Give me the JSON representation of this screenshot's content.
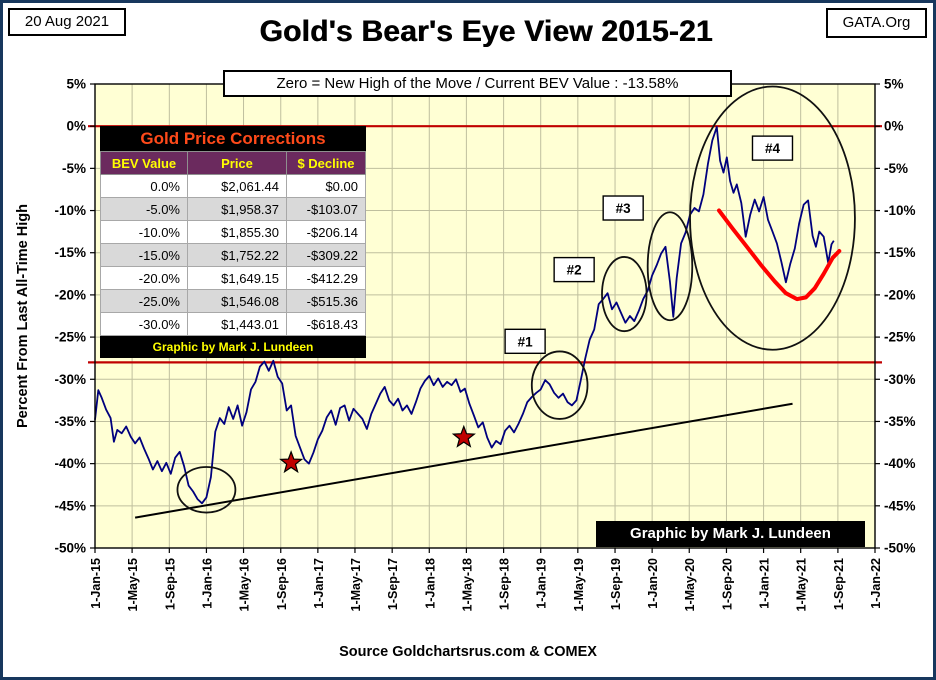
{
  "header": {
    "date": "20 Aug 2021",
    "org": "GATA.Org"
  },
  "table": {
    "title": "Gold Price Corrections",
    "columns": [
      "BEV Value",
      "Price",
      "$ Decline"
    ],
    "rows": [
      [
        "0.0%",
        "$2,061.44",
        "$0.00"
      ],
      [
        "-5.0%",
        "$1,958.37",
        "-$103.07"
      ],
      [
        "-10.0%",
        "$1,855.30",
        "-$206.14"
      ],
      [
        "-15.0%",
        "$1,752.22",
        "-$309.22"
      ],
      [
        "-20.0%",
        "$1,649.15",
        "-$412.29"
      ],
      [
        "-25.0%",
        "$1,546.08",
        "-$515.36"
      ],
      [
        "-30.0%",
        "$1,443.01",
        "-$618.43"
      ]
    ],
    "footer": "Graphic by Mark J. Lundeen",
    "colors": {
      "title_text": "#ff4a1a",
      "header_bg": "#6b2a5e",
      "header_text": "#ffff00",
      "row_alt_bg": "#d9d9d9",
      "footer_text": "#ffff00"
    }
  },
  "footer": {
    "credit": "Graphic by Mark J. Lundeen"
  },
  "chart_data": {
    "type": "line",
    "title": "Gold's Bear's Eye View 2015-21",
    "subtitle": "Zero = New High of the Move / Current  BEV Value : -13.58%",
    "ylabel": "Percent  From Last All-Time High",
    "xlabel": "Source Goldchartsrus.com & COMEX",
    "current_bev_pct": -13.58,
    "x_range": [
      2015,
      2022
    ],
    "y_range": [
      -50,
      5
    ],
    "grid": true,
    "x_ticks": [
      {
        "t": 2015.0,
        "label": "1-Jan-15"
      },
      {
        "t": 2015.333,
        "label": "1-May-15"
      },
      {
        "t": 2015.667,
        "label": "1-Sep-15"
      },
      {
        "t": 2016.0,
        "label": "1-Jan-16"
      },
      {
        "t": 2016.333,
        "label": "1-May-16"
      },
      {
        "t": 2016.667,
        "label": "1-Sep-16"
      },
      {
        "t": 2017.0,
        "label": "1-Jan-17"
      },
      {
        "t": 2017.333,
        "label": "1-May-17"
      },
      {
        "t": 2017.667,
        "label": "1-Sep-17"
      },
      {
        "t": 2018.0,
        "label": "1-Jan-18"
      },
      {
        "t": 2018.333,
        "label": "1-May-18"
      },
      {
        "t": 2018.667,
        "label": "1-Sep-18"
      },
      {
        "t": 2019.0,
        "label": "1-Jan-19"
      },
      {
        "t": 2019.333,
        "label": "1-May-19"
      },
      {
        "t": 2019.667,
        "label": "1-Sep-19"
      },
      {
        "t": 2020.0,
        "label": "1-Jan-20"
      },
      {
        "t": 2020.333,
        "label": "1-May-20"
      },
      {
        "t": 2020.667,
        "label": "1-Sep-20"
      },
      {
        "t": 2021.0,
        "label": "1-Jan-21"
      },
      {
        "t": 2021.333,
        "label": "1-May-21"
      },
      {
        "t": 2021.667,
        "label": "1-Sep-21"
      },
      {
        "t": 2022.0,
        "label": "1-Jan-22"
      }
    ],
    "y_ticks": [
      {
        "v": 5,
        "label": "5%"
      },
      {
        "v": 0,
        "label": "0%"
      },
      {
        "v": -5,
        "label": "-5%"
      },
      {
        "v": -10,
        "label": "-10%"
      },
      {
        "v": -15,
        "label": "-15%"
      },
      {
        "v": -20,
        "label": "-20%"
      },
      {
        "v": -25,
        "label": "-25%"
      },
      {
        "v": -30,
        "label": "-30%"
      },
      {
        "v": -35,
        "label": "-35%"
      },
      {
        "v": -40,
        "label": "-40%"
      },
      {
        "v": -45,
        "label": "-45%"
      },
      {
        "v": -50,
        "label": "-50%"
      }
    ],
    "colors": {
      "series": "#00007e",
      "plot_bg": "#ffffd4",
      "grid": "#bfbf9e",
      "red_line": "#c00000",
      "red_curve": "#ff0000",
      "star": "#c00000",
      "annotation": "#111111"
    },
    "red_hlines": [
      0,
      -28
    ],
    "trend_line": {
      "x1": 2015.36,
      "y1": -46.4,
      "x2": 2021.26,
      "y2": -32.9
    },
    "series": [
      {
        "name": "Gold BEV (% from all-time high)",
        "color": "#00007e",
        "points": [
          [
            2015.0,
            -34.8
          ],
          [
            2015.03,
            -31.3
          ],
          [
            2015.06,
            -32.2
          ],
          [
            2015.1,
            -33.6
          ],
          [
            2015.14,
            -34.6
          ],
          [
            2015.17,
            -37.4
          ],
          [
            2015.2,
            -36.0
          ],
          [
            2015.24,
            -36.4
          ],
          [
            2015.28,
            -35.6
          ],
          [
            2015.32,
            -36.8
          ],
          [
            2015.36,
            -37.6
          ],
          [
            2015.4,
            -36.9
          ],
          [
            2015.44,
            -38.2
          ],
          [
            2015.48,
            -39.4
          ],
          [
            2015.52,
            -40.7
          ],
          [
            2015.56,
            -39.7
          ],
          [
            2015.6,
            -40.9
          ],
          [
            2015.64,
            -39.9
          ],
          [
            2015.68,
            -41.2
          ],
          [
            2015.72,
            -39.3
          ],
          [
            2015.76,
            -38.6
          ],
          [
            2015.8,
            -40.3
          ],
          [
            2015.84,
            -42.6
          ],
          [
            2015.88,
            -43.3
          ],
          [
            2015.92,
            -44.2
          ],
          [
            2015.96,
            -44.7
          ],
          [
            2016.0,
            -44.0
          ],
          [
            2016.04,
            -41.6
          ],
          [
            2016.08,
            -36.2
          ],
          [
            2016.12,
            -34.6
          ],
          [
            2016.16,
            -35.3
          ],
          [
            2016.2,
            -33.3
          ],
          [
            2016.24,
            -34.7
          ],
          [
            2016.28,
            -33.1
          ],
          [
            2016.32,
            -35.5
          ],
          [
            2016.36,
            -33.9
          ],
          [
            2016.4,
            -31.2
          ],
          [
            2016.44,
            -30.3
          ],
          [
            2016.48,
            -28.5
          ],
          [
            2016.52,
            -27.9
          ],
          [
            2016.56,
            -29.0
          ],
          [
            2016.6,
            -27.8
          ],
          [
            2016.64,
            -29.7
          ],
          [
            2016.68,
            -30.5
          ],
          [
            2016.72,
            -33.7
          ],
          [
            2016.76,
            -33.1
          ],
          [
            2016.8,
            -36.7
          ],
          [
            2016.84,
            -38.1
          ],
          [
            2016.88,
            -39.5
          ],
          [
            2016.92,
            -40.0
          ],
          [
            2016.96,
            -38.7
          ],
          [
            2017.0,
            -37.1
          ],
          [
            2017.04,
            -36.1
          ],
          [
            2017.08,
            -34.5
          ],
          [
            2017.12,
            -33.7
          ],
          [
            2017.16,
            -35.4
          ],
          [
            2017.2,
            -33.4
          ],
          [
            2017.24,
            -33.1
          ],
          [
            2017.28,
            -34.9
          ],
          [
            2017.32,
            -33.5
          ],
          [
            2017.36,
            -34.1
          ],
          [
            2017.4,
            -34.7
          ],
          [
            2017.44,
            -35.9
          ],
          [
            2017.48,
            -34.1
          ],
          [
            2017.52,
            -32.9
          ],
          [
            2017.56,
            -31.7
          ],
          [
            2017.6,
            -30.9
          ],
          [
            2017.64,
            -32.5
          ],
          [
            2017.68,
            -33.1
          ],
          [
            2017.72,
            -32.3
          ],
          [
            2017.76,
            -33.7
          ],
          [
            2017.8,
            -33.1
          ],
          [
            2017.84,
            -34.1
          ],
          [
            2017.88,
            -32.7
          ],
          [
            2017.92,
            -31.1
          ],
          [
            2017.96,
            -30.2
          ],
          [
            2018.0,
            -29.6
          ],
          [
            2018.04,
            -30.7
          ],
          [
            2018.08,
            -29.9
          ],
          [
            2018.12,
            -30.9
          ],
          [
            2018.16,
            -30.3
          ],
          [
            2018.2,
            -30.7
          ],
          [
            2018.24,
            -30.0
          ],
          [
            2018.28,
            -31.5
          ],
          [
            2018.32,
            -31.1
          ],
          [
            2018.36,
            -32.9
          ],
          [
            2018.4,
            -34.3
          ],
          [
            2018.44,
            -35.7
          ],
          [
            2018.48,
            -35.1
          ],
          [
            2018.52,
            -36.9
          ],
          [
            2018.56,
            -38.1
          ],
          [
            2018.6,
            -37.3
          ],
          [
            2018.64,
            -37.7
          ],
          [
            2018.68,
            -36.1
          ],
          [
            2018.72,
            -35.5
          ],
          [
            2018.76,
            -36.3
          ],
          [
            2018.8,
            -35.3
          ],
          [
            2018.84,
            -34.1
          ],
          [
            2018.88,
            -32.7
          ],
          [
            2018.92,
            -32.1
          ],
          [
            2018.96,
            -31.6
          ],
          [
            2019.0,
            -31.2
          ],
          [
            2019.04,
            -30.1
          ],
          [
            2019.08,
            -30.6
          ],
          [
            2019.12,
            -31.6
          ],
          [
            2019.16,
            -32.2
          ],
          [
            2019.2,
            -31.7
          ],
          [
            2019.24,
            -32.7
          ],
          [
            2019.28,
            -33.1
          ],
          [
            2019.32,
            -32.5
          ],
          [
            2019.36,
            -30.1
          ],
          [
            2019.4,
            -27.5
          ],
          [
            2019.44,
            -25.3
          ],
          [
            2019.48,
            -24.1
          ],
          [
            2019.52,
            -21.1
          ],
          [
            2019.56,
            -20.5
          ],
          [
            2019.6,
            -19.8
          ],
          [
            2019.64,
            -21.7
          ],
          [
            2019.68,
            -20.9
          ],
          [
            2019.72,
            -22.1
          ],
          [
            2019.76,
            -23.3
          ],
          [
            2019.8,
            -22.5
          ],
          [
            2019.84,
            -23.1
          ],
          [
            2019.88,
            -21.9
          ],
          [
            2019.92,
            -20.5
          ],
          [
            2019.96,
            -19.5
          ],
          [
            2020.0,
            -17.7
          ],
          [
            2020.04,
            -16.5
          ],
          [
            2020.08,
            -15.1
          ],
          [
            2020.12,
            -14.3
          ],
          [
            2020.16,
            -18.5
          ],
          [
            2020.19,
            -22.6
          ],
          [
            2020.22,
            -18.0
          ],
          [
            2020.26,
            -13.9
          ],
          [
            2020.3,
            -12.6
          ],
          [
            2020.34,
            -10.5
          ],
          [
            2020.38,
            -9.7
          ],
          [
            2020.42,
            -10.1
          ],
          [
            2020.46,
            -8.1
          ],
          [
            2020.5,
            -4.5
          ],
          [
            2020.54,
            -1.7
          ],
          [
            2020.58,
            -0.1
          ],
          [
            2020.61,
            -4.1
          ],
          [
            2020.64,
            -5.5
          ],
          [
            2020.67,
            -3.7
          ],
          [
            2020.7,
            -6.5
          ],
          [
            2020.73,
            -7.9
          ],
          [
            2020.76,
            -6.9
          ],
          [
            2020.8,
            -9.1
          ],
          [
            2020.84,
            -13.1
          ],
          [
            2020.88,
            -10.5
          ],
          [
            2020.92,
            -8.7
          ],
          [
            2020.96,
            -10.1
          ],
          [
            2021.0,
            -8.4
          ],
          [
            2021.04,
            -11.1
          ],
          [
            2021.08,
            -12.5
          ],
          [
            2021.12,
            -13.9
          ],
          [
            2021.16,
            -16.1
          ],
          [
            2021.2,
            -18.5
          ],
          [
            2021.24,
            -16.3
          ],
          [
            2021.28,
            -14.5
          ],
          [
            2021.32,
            -11.5
          ],
          [
            2021.36,
            -9.3
          ],
          [
            2021.4,
            -8.8
          ],
          [
            2021.44,
            -13.0
          ],
          [
            2021.47,
            -14.3
          ],
          [
            2021.5,
            -12.5
          ],
          [
            2021.54,
            -13.1
          ],
          [
            2021.58,
            -16.2
          ],
          [
            2021.61,
            -14.0
          ],
          [
            2021.63,
            -13.58
          ]
        ]
      }
    ],
    "red_curve": [
      [
        2020.6,
        -10.0
      ],
      [
        2020.72,
        -12.1
      ],
      [
        2020.85,
        -14.3
      ],
      [
        2020.98,
        -16.5
      ],
      [
        2021.1,
        -18.4
      ],
      [
        2021.2,
        -19.8
      ],
      [
        2021.3,
        -20.5
      ],
      [
        2021.38,
        -20.3
      ],
      [
        2021.46,
        -19.2
      ],
      [
        2021.54,
        -17.5
      ],
      [
        2021.62,
        -15.6
      ],
      [
        2021.68,
        -14.8
      ]
    ],
    "ellipses": [
      {
        "cx": 2016.0,
        "cy": -43.1,
        "rx": 0.26,
        "ry": 2.7
      },
      {
        "cx": 2019.17,
        "cy": -30.7,
        "rx": 0.25,
        "ry": 4.0
      },
      {
        "cx": 2019.75,
        "cy": -19.9,
        "rx": 0.2,
        "ry": 4.4
      },
      {
        "cx": 2020.16,
        "cy": -16.6,
        "rx": 0.2,
        "ry": 6.4
      },
      {
        "cx": 2021.08,
        "cy": -10.9,
        "rx": 0.74,
        "ry": 15.6
      }
    ],
    "stars": [
      {
        "t": 2016.76,
        "v": -39.9
      },
      {
        "t": 2018.31,
        "v": -36.9
      }
    ],
    "callouts": [
      {
        "label": "#1",
        "t": 2018.86,
        "v": -25.5
      },
      {
        "label": "#2",
        "t": 2019.3,
        "v": -17.0
      },
      {
        "label": "#3",
        "t": 2019.74,
        "v": -9.7
      },
      {
        "label": "#4",
        "t": 2021.08,
        "v": -2.6
      }
    ]
  }
}
